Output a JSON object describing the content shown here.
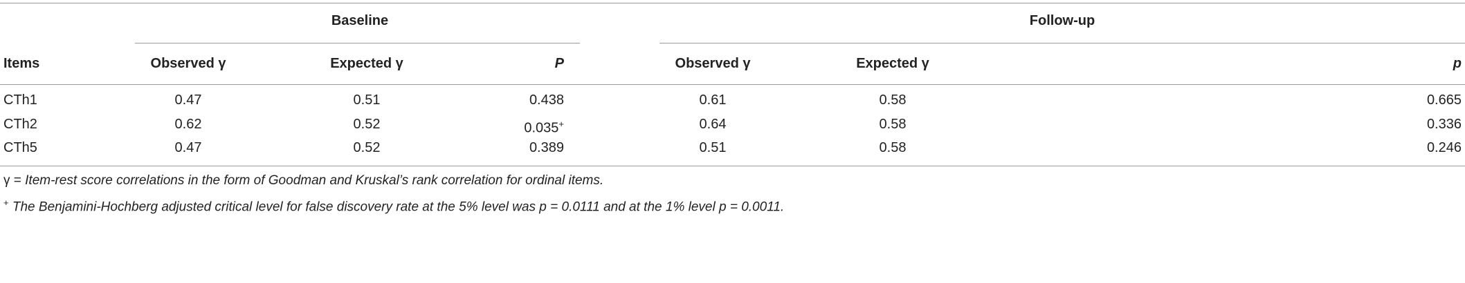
{
  "table": {
    "groups": [
      "Baseline",
      "Follow-up"
    ],
    "columns": [
      "Items",
      "Observed γ",
      "Expected γ",
      "P",
      "Observed γ",
      "Expected γ",
      "p"
    ],
    "rows": [
      [
        "CTh1",
        "0.47",
        "0.51",
        "0.438",
        "0.61",
        "0.58",
        "0.665"
      ],
      [
        "CTh2",
        "0.62",
        "0.52",
        {
          "text": "0.035",
          "note": "+"
        },
        "0.64",
        "0.58",
        "0.336"
      ],
      [
        "CTh5",
        "0.47",
        "0.52",
        "0.389",
        "0.51",
        "0.58",
        "0.246"
      ]
    ]
  },
  "footnotes": [
    {
      "symbol": "γ =",
      "text": "Item-rest score correlations in the form of Goodman and Kruskal’s rank correlation for ordinal items."
    },
    {
      "symbol": "+",
      "text": "The Benjamini-Hochberg adjusted critical level for false discovery rate at the 5% level was p = 0.0111 and at the 1% level p = 0.0011."
    }
  ]
}
